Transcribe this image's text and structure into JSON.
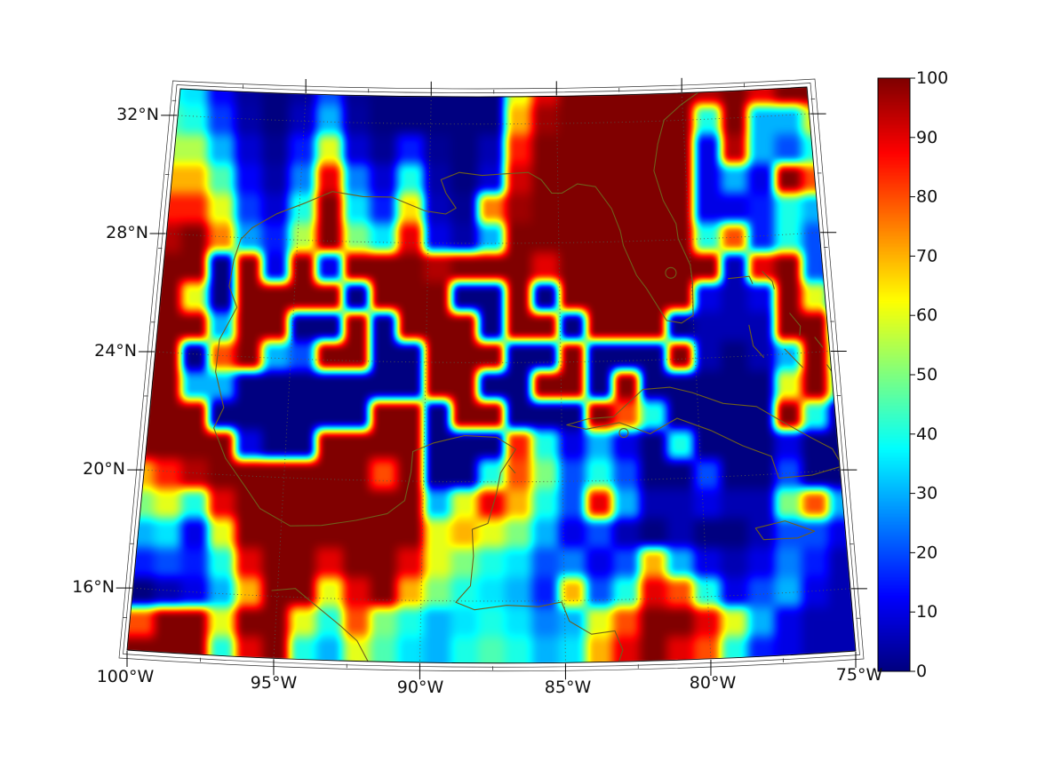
{
  "figure": {
    "title": "",
    "background": "#ffffff"
  },
  "axes": {
    "bottom_labels": [
      "100°W",
      "95°W",
      "90°W",
      "85°W",
      "80°W",
      "75°W"
    ],
    "left_labels": [
      "32°N",
      "28°N",
      "24°N",
      "20°N",
      "16°N"
    ]
  },
  "colorbar": {
    "tick_labels": [
      "0",
      "10",
      "20",
      "30",
      "40",
      "50",
      "60",
      "70",
      "80",
      "90",
      "100"
    ],
    "min": 0,
    "max": 100,
    "palette": "jet"
  },
  "colors": {
    "coastline": "#6f5f1c",
    "frame": "#333333",
    "boundary": "#000000",
    "graticule": "#55554a",
    "label": "#111111"
  },
  "chart_data": {
    "type": "heatmap",
    "title": "",
    "palette": "jet",
    "value_range": [
      0,
      100
    ],
    "lon_range": [
      -100,
      -75
    ],
    "lat_range": [
      13.9,
      32.9
    ],
    "projection": "lambert-conformal-like trapezoid",
    "graticule": {
      "parallels_deg": [
        16,
        20,
        24,
        28,
        32
      ],
      "meridians_deg": [
        -95,
        -90,
        -85,
        -80
      ]
    },
    "colorbar_ticks": [
      0,
      10,
      20,
      30,
      40,
      50,
      60,
      70,
      80,
      90,
      100
    ],
    "grid": {
      "cols": 27,
      "rows": 20,
      "order": "north-to-south",
      "values": [
        [
          40,
          40,
          35,
          12,
          3,
          0,
          3,
          20,
          2,
          0,
          0,
          0,
          0,
          0,
          60,
          90,
          100,
          100,
          100,
          100,
          100,
          95,
          100,
          90,
          100,
          100,
          100
        ],
        [
          45,
          45,
          40,
          18,
          4,
          0,
          6,
          30,
          3,
          0,
          0,
          0,
          0,
          0,
          70,
          97,
          100,
          100,
          100,
          100,
          100,
          40,
          100,
          30,
          30,
          60,
          95
        ],
        [
          55,
          55,
          55,
          30,
          8,
          2,
          15,
          60,
          8,
          2,
          15,
          2,
          0,
          5,
          85,
          100,
          100,
          100,
          100,
          100,
          100,
          10,
          95,
          30,
          20,
          40,
          80
        ],
        [
          70,
          70,
          70,
          45,
          12,
          4,
          25,
          90,
          25,
          8,
          40,
          4,
          0,
          8,
          92,
          100,
          100,
          100,
          100,
          100,
          100,
          10,
          30,
          10,
          100,
          80,
          90
        ],
        [
          85,
          85,
          85,
          60,
          18,
          8,
          40,
          100,
          35,
          15,
          65,
          6,
          2,
          75,
          97,
          100,
          100,
          100,
          100,
          100,
          100,
          10,
          10,
          15,
          40,
          30,
          95
        ],
        [
          95,
          95,
          100,
          75,
          28,
          15,
          55,
          100,
          50,
          35,
          90,
          10,
          4,
          30,
          100,
          100,
          100,
          100,
          100,
          100,
          100,
          40,
          80,
          15,
          40,
          20,
          40
        ],
        [
          100,
          100,
          100,
          0,
          100,
          10,
          100,
          10,
          100,
          100,
          100,
          95,
          100,
          100,
          100,
          90,
          100,
          100,
          100,
          100,
          100,
          100,
          5,
          90,
          100,
          20,
          5
        ],
        [
          100,
          100,
          60,
          0,
          100,
          100,
          100,
          100,
          0,
          100,
          100,
          100,
          0,
          0,
          100,
          0,
          100,
          100,
          100,
          100,
          100,
          10,
          5,
          10,
          100,
          60,
          5
        ],
        [
          100,
          100,
          100,
          30,
          100,
          100,
          0,
          0,
          100,
          0,
          100,
          100,
          100,
          0,
          100,
          100,
          0,
          100,
          100,
          100,
          0,
          5,
          5,
          5,
          100,
          100,
          10
        ],
        [
          100,
          100,
          0,
          80,
          100,
          30,
          20,
          100,
          100,
          0,
          0,
          100,
          100,
          100,
          0,
          0,
          100,
          0,
          0,
          0,
          100,
          5,
          0,
          5,
          30,
          100,
          30
        ],
        [
          100,
          100,
          30,
          30,
          0,
          0,
          0,
          0,
          0,
          0,
          0,
          100,
          100,
          0,
          0,
          100,
          100,
          0,
          100,
          0,
          0,
          0,
          0,
          0,
          60,
          100,
          40
        ],
        [
          100,
          100,
          100,
          0,
          0,
          0,
          0,
          0,
          0,
          100,
          100,
          0,
          100,
          100,
          0,
          0,
          0,
          100,
          80,
          40,
          0,
          0,
          0,
          0,
          100,
          40,
          0
        ],
        [
          100,
          100,
          100,
          100,
          10,
          0,
          0,
          100,
          100,
          100,
          100,
          0,
          0,
          0,
          85,
          40,
          10,
          30,
          10,
          0,
          40,
          0,
          0,
          0,
          10,
          0,
          0
        ],
        [
          70,
          85,
          95,
          100,
          100,
          100,
          100,
          100,
          100,
          80,
          100,
          0,
          0,
          40,
          80,
          50,
          20,
          40,
          20,
          0,
          0,
          20,
          0,
          0,
          20,
          0,
          0
        ],
        [
          50,
          60,
          40,
          90,
          100,
          100,
          100,
          100,
          100,
          100,
          100,
          30,
          60,
          90,
          70,
          40,
          20,
          90,
          30,
          5,
          5,
          10,
          5,
          5,
          50,
          80,
          30
        ],
        [
          30,
          35,
          10,
          60,
          100,
          100,
          100,
          100,
          100,
          100,
          100,
          60,
          70,
          60,
          50,
          30,
          10,
          20,
          5,
          0,
          5,
          0,
          0,
          5,
          20,
          20,
          10
        ],
        [
          15,
          20,
          15,
          40,
          90,
          100,
          100,
          90,
          100,
          100,
          90,
          60,
          50,
          40,
          35,
          20,
          25,
          10,
          20,
          70,
          30,
          10,
          5,
          10,
          25,
          15,
          5
        ],
        [
          0,
          5,
          10,
          30,
          70,
          100,
          100,
          60,
          90,
          100,
          70,
          50,
          40,
          35,
          30,
          15,
          70,
          20,
          40,
          90,
          80,
          40,
          10,
          20,
          30,
          10,
          5
        ],
        [
          80,
          100,
          100,
          60,
          100,
          100,
          60,
          40,
          80,
          50,
          40,
          30,
          35,
          40,
          35,
          25,
          30,
          60,
          80,
          100,
          100,
          90,
          60,
          30,
          10,
          5,
          5
        ],
        [
          100,
          100,
          100,
          40,
          90,
          100,
          40,
          30,
          60,
          45,
          35,
          30,
          40,
          45,
          40,
          30,
          35,
          70,
          90,
          100,
          90,
          80,
          40,
          15,
          10,
          5,
          5
        ]
      ]
    }
  }
}
